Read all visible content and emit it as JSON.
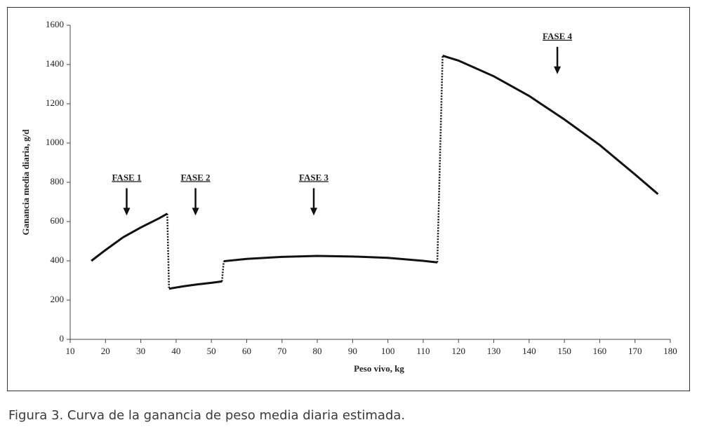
{
  "chart_data": {
    "type": "line",
    "x_label": "Peso vivo, kg",
    "y_label": "Ganancia media diaria, g/d",
    "x": [
      16,
      20,
      25,
      30,
      35,
      37.5,
      null,
      38,
      42,
      46,
      50,
      53,
      null,
      53.5,
      60,
      70,
      80,
      90,
      100,
      110,
      114,
      null,
      115.5,
      120,
      130,
      140,
      150,
      160,
      170,
      176.5
    ],
    "series": [
      {
        "color": "#111111",
        "values": [
          400,
          455,
          520,
          570,
          615,
          640,
          null,
          258,
          270,
          280,
          288,
          295,
          null,
          398,
          410,
          420,
          425,
          422,
          415,
          400,
          392,
          null,
          1445,
          1420,
          1340,
          1240,
          1120,
          990,
          840,
          740
        ]
      }
    ],
    "xlim": [
      10,
      180
    ],
    "xticks": [
      10,
      20,
      30,
      40,
      50,
      60,
      70,
      80,
      90,
      100,
      110,
      120,
      130,
      140,
      150,
      160,
      170,
      180
    ],
    "ylim": [
      0,
      1600
    ],
    "yticks": [
      0,
      200,
      400,
      600,
      800,
      1000,
      1200,
      1400,
      1600
    ],
    "annotations": [
      {
        "text": "FASE 1",
        "x": 26,
        "y": 820
      },
      {
        "text": "FASE 2",
        "x": 45.5,
        "y": 820
      },
      {
        "text": "FASE 3",
        "x": 79,
        "y": 820
      },
      {
        "text": "FASE 4",
        "x": 148,
        "y": 1540
      }
    ]
  },
  "caption": "Figura 3. Curva de la ganancia de peso media diaria estimada."
}
